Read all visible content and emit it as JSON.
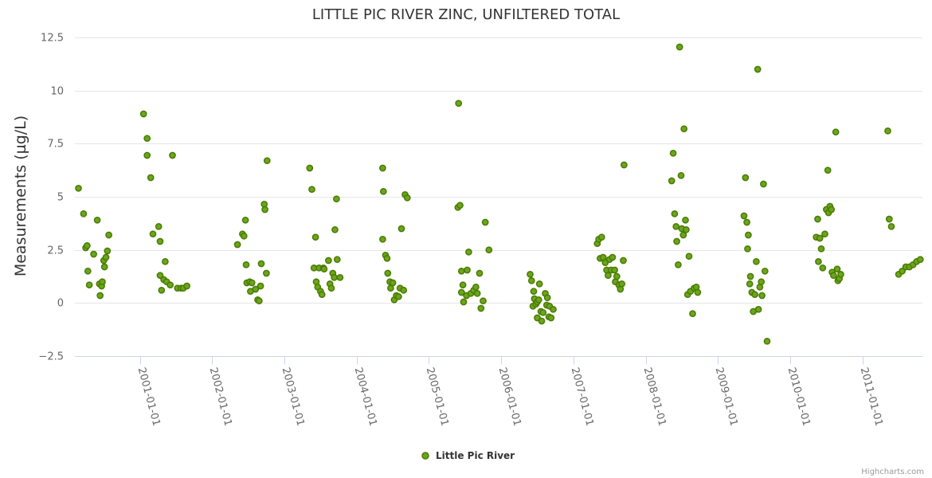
{
  "chart_data": {
    "type": "scatter",
    "title": "LITTLE PIC RIVER ZINC, UNFILTERED TOTAL",
    "ylabel": "Measurements (µg/L)",
    "xlabel": "",
    "ylim": [
      -2.5,
      12.5
    ],
    "yticks": [
      -2.5,
      0,
      2.5,
      5,
      7.5,
      10,
      12.5
    ],
    "ytick_labels": [
      "−2.5",
      "0",
      "2.5",
      "5",
      "7.5",
      "10",
      "12.5"
    ],
    "xlim": [
      2000.1,
      2011.83
    ],
    "xticks": [
      2001,
      2002,
      2003,
      2004,
      2005,
      2006,
      2007,
      2008,
      2009,
      2010,
      2011
    ],
    "xtick_labels": [
      "2001-01-01",
      "2002-01-01",
      "2003-01-01",
      "2004-01-01",
      "2005-01-01",
      "2006-01-01",
      "2007-01-01",
      "2008-01-01",
      "2009-01-01",
      "2010-01-01",
      "2011-01-01"
    ],
    "grid": true,
    "legend": "bottom-center",
    "series": [
      {
        "name": "Little Pic River",
        "fill": "#6aa61d",
        "stroke": "#4a7a00",
        "points": [
          [
            2000.15,
            5.4
          ],
          [
            2000.22,
            4.2
          ],
          [
            2000.25,
            2.6
          ],
          [
            2000.27,
            2.7
          ],
          [
            2000.28,
            1.5
          ],
          [
            2000.3,
            0.85
          ],
          [
            2000.36,
            2.3
          ],
          [
            2000.41,
            3.9
          ],
          [
            2000.44,
            0.9
          ],
          [
            2000.45,
            0.35
          ],
          [
            2000.47,
            0.8
          ],
          [
            2000.48,
            1.0
          ],
          [
            2000.5,
            2.0
          ],
          [
            2000.51,
            1.7
          ],
          [
            2000.53,
            2.15
          ],
          [
            2000.55,
            2.45
          ],
          [
            2000.57,
            3.2
          ],
          [
            2001.05,
            8.9
          ],
          [
            2001.1,
            7.75
          ],
          [
            2001.1,
            6.95
          ],
          [
            2001.15,
            5.9
          ],
          [
            2001.18,
            3.25
          ],
          [
            2001.26,
            3.6
          ],
          [
            2001.28,
            2.9
          ],
          [
            2001.28,
            1.3
          ],
          [
            2001.3,
            0.6
          ],
          [
            2001.33,
            1.1
          ],
          [
            2001.35,
            1.95
          ],
          [
            2001.37,
            1.0
          ],
          [
            2001.42,
            0.85
          ],
          [
            2001.45,
            6.95
          ],
          [
            2001.52,
            0.7
          ],
          [
            2001.57,
            0.7
          ],
          [
            2001.6,
            0.7
          ],
          [
            2001.65,
            0.8
          ],
          [
            2002.35,
            2.75
          ],
          [
            2002.42,
            3.25
          ],
          [
            2002.44,
            3.15
          ],
          [
            2002.46,
            3.9
          ],
          [
            2002.47,
            1.8
          ],
          [
            2002.48,
            0.95
          ],
          [
            2002.52,
            1.0
          ],
          [
            2002.53,
            0.55
          ],
          [
            2002.55,
            0.95
          ],
          [
            2002.6,
            0.65
          ],
          [
            2002.63,
            0.15
          ],
          [
            2002.65,
            0.1
          ],
          [
            2002.67,
            0.8
          ],
          [
            2002.68,
            1.85
          ],
          [
            2002.72,
            4.65
          ],
          [
            2002.73,
            4.4
          ],
          [
            2002.75,
            1.4
          ],
          [
            2002.76,
            6.7
          ],
          [
            2003.35,
            6.35
          ],
          [
            2003.38,
            5.35
          ],
          [
            2003.41,
            1.65
          ],
          [
            2003.43,
            3.1
          ],
          [
            2003.44,
            1.0
          ],
          [
            2003.46,
            0.75
          ],
          [
            2003.48,
            1.65
          ],
          [
            2003.5,
            0.55
          ],
          [
            2003.52,
            0.4
          ],
          [
            2003.54,
            1.65
          ],
          [
            2003.55,
            1.6
          ],
          [
            2003.61,
            2.0
          ],
          [
            2003.63,
            0.9
          ],
          [
            2003.65,
            0.7
          ],
          [
            2003.67,
            1.4
          ],
          [
            2003.69,
            1.2
          ],
          [
            2003.7,
            3.45
          ],
          [
            2003.72,
            4.9
          ],
          [
            2003.73,
            2.05
          ],
          [
            2003.77,
            1.2
          ],
          [
            2004.36,
            6.35
          ],
          [
            2004.37,
            5.25
          ],
          [
            2004.36,
            3.0
          ],
          [
            2004.4,
            2.25
          ],
          [
            2004.42,
            2.1
          ],
          [
            2004.43,
            1.4
          ],
          [
            2004.46,
            1.0
          ],
          [
            2004.47,
            0.7
          ],
          [
            2004.5,
            0.95
          ],
          [
            2004.52,
            0.15
          ],
          [
            2004.55,
            0.35
          ],
          [
            2004.58,
            0.3
          ],
          [
            2004.6,
            0.7
          ],
          [
            2004.62,
            3.5
          ],
          [
            2004.65,
            0.6
          ],
          [
            2004.67,
            5.1
          ],
          [
            2004.7,
            4.95
          ],
          [
            2005.41,
            9.4
          ],
          [
            2005.4,
            4.5
          ],
          [
            2005.43,
            4.6
          ],
          [
            2005.45,
            1.5
          ],
          [
            2005.45,
            0.5
          ],
          [
            2005.47,
            0.85
          ],
          [
            2005.48,
            0.05
          ],
          [
            2005.52,
            0.35
          ],
          [
            2005.53,
            1.55
          ],
          [
            2005.55,
            2.4
          ],
          [
            2005.58,
            0.45
          ],
          [
            2005.62,
            0.6
          ],
          [
            2005.65,
            0.75
          ],
          [
            2005.67,
            0.45
          ],
          [
            2005.7,
            1.4
          ],
          [
            2005.72,
            -0.25
          ],
          [
            2005.75,
            0.1
          ],
          [
            2005.78,
            3.8
          ],
          [
            2005.83,
            2.5
          ],
          [
            2006.4,
            1.35
          ],
          [
            2006.42,
            1.05
          ],
          [
            2006.44,
            -0.15
          ],
          [
            2006.45,
            0.55
          ],
          [
            2006.46,
            0.2
          ],
          [
            2006.48,
            -0.05
          ],
          [
            2006.5,
            -0.7
          ],
          [
            2006.5,
            0.05
          ],
          [
            2006.52,
            0.15
          ],
          [
            2006.53,
            0.9
          ],
          [
            2006.55,
            -0.4
          ],
          [
            2006.56,
            -0.85
          ],
          [
            2006.58,
            -0.45
          ],
          [
            2006.61,
            0.45
          ],
          [
            2006.63,
            -0.1
          ],
          [
            2006.64,
            0.25
          ],
          [
            2006.66,
            -0.65
          ],
          [
            2006.67,
            -0.15
          ],
          [
            2006.69,
            -0.7
          ],
          [
            2006.72,
            -0.3
          ],
          [
            2007.33,
            2.8
          ],
          [
            2007.35,
            3.0
          ],
          [
            2007.37,
            2.1
          ],
          [
            2007.39,
            3.1
          ],
          [
            2007.41,
            2.15
          ],
          [
            2007.44,
            1.9
          ],
          [
            2007.46,
            1.55
          ],
          [
            2007.48,
            1.3
          ],
          [
            2007.5,
            2.05
          ],
          [
            2007.52,
            1.55
          ],
          [
            2007.54,
            2.15
          ],
          [
            2007.57,
            1.55
          ],
          [
            2007.58,
            1.0
          ],
          [
            2007.6,
            1.25
          ],
          [
            2007.63,
            0.85
          ],
          [
            2007.65,
            0.65
          ],
          [
            2007.67,
            0.9
          ],
          [
            2007.69,
            2.0
          ],
          [
            2007.7,
            6.5
          ],
          [
            2008.36,
            5.75
          ],
          [
            2008.38,
            7.05
          ],
          [
            2008.4,
            4.2
          ],
          [
            2008.42,
            3.6
          ],
          [
            2008.43,
            2.9
          ],
          [
            2008.45,
            1.8
          ],
          [
            2008.47,
            12.05
          ],
          [
            2008.49,
            6.0
          ],
          [
            2008.5,
            3.5
          ],
          [
            2008.52,
            3.2
          ],
          [
            2008.53,
            8.2
          ],
          [
            2008.55,
            3.9
          ],
          [
            2008.56,
            3.45
          ],
          [
            2008.58,
            0.4
          ],
          [
            2008.6,
            2.2
          ],
          [
            2008.62,
            0.55
          ],
          [
            2008.65,
            -0.5
          ],
          [
            2008.67,
            0.7
          ],
          [
            2008.7,
            0.75
          ],
          [
            2008.72,
            0.5
          ],
          [
            2009.36,
            4.1
          ],
          [
            2009.38,
            5.9
          ],
          [
            2009.4,
            3.8
          ],
          [
            2009.42,
            3.2
          ],
          [
            2009.41,
            2.55
          ],
          [
            2009.44,
            0.9
          ],
          [
            2009.45,
            1.25
          ],
          [
            2009.47,
            0.5
          ],
          [
            2009.49,
            -0.4
          ],
          [
            2009.51,
            0.4
          ],
          [
            2009.53,
            1.95
          ],
          [
            2009.55,
            11.0
          ],
          [
            2009.56,
            -0.3
          ],
          [
            2009.58,
            0.75
          ],
          [
            2009.6,
            1.0
          ],
          [
            2009.61,
            0.35
          ],
          [
            2009.63,
            5.6
          ],
          [
            2009.65,
            1.5
          ],
          [
            2009.68,
            -1.8
          ],
          [
            2010.36,
            3.1
          ],
          [
            2010.38,
            3.95
          ],
          [
            2010.39,
            1.95
          ],
          [
            2010.41,
            3.05
          ],
          [
            2010.43,
            2.55
          ],
          [
            2010.45,
            1.65
          ],
          [
            2010.48,
            3.25
          ],
          [
            2010.5,
            4.4
          ],
          [
            2010.52,
            6.25
          ],
          [
            2010.53,
            4.25
          ],
          [
            2010.55,
            4.55
          ],
          [
            2010.57,
            4.4
          ],
          [
            2010.58,
            1.45
          ],
          [
            2010.6,
            1.3
          ],
          [
            2010.63,
            8.05
          ],
          [
            2010.65,
            1.6
          ],
          [
            2010.66,
            1.05
          ],
          [
            2010.68,
            1.15
          ],
          [
            2010.7,
            1.35
          ],
          [
            2011.35,
            8.1
          ],
          [
            2011.37,
            3.95
          ],
          [
            2011.4,
            3.6
          ],
          [
            2011.5,
            1.35
          ],
          [
            2011.55,
            1.5
          ],
          [
            2011.6,
            1.7
          ],
          [
            2011.65,
            1.7
          ],
          [
            2011.7,
            1.8
          ],
          [
            2011.75,
            1.95
          ],
          [
            2011.8,
            2.05
          ]
        ]
      }
    ]
  },
  "credits": "Highcharts.com"
}
